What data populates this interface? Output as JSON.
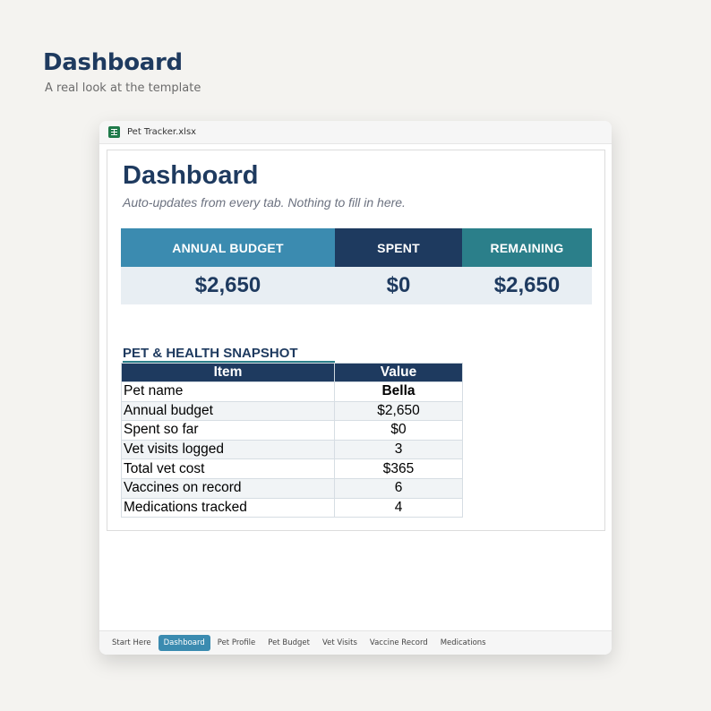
{
  "page": {
    "title": "Dashboard",
    "subtitle": "A real look at the template"
  },
  "window": {
    "filename": "Pet Tracker.xlsx",
    "icon": "spreadsheet-icon"
  },
  "sheet": {
    "title": "Dashboard",
    "subtitle": "Auto-updates from every tab. Nothing to fill in here.",
    "kpis": [
      {
        "label": "ANNUAL BUDGET",
        "value": "$2,650",
        "color": "#3b8bb0"
      },
      {
        "label": "SPENT",
        "value": "$0",
        "color": "#1e3a5f"
      },
      {
        "label": "REMAINING",
        "value": "$2,650",
        "color": "#2b7f8a"
      }
    ],
    "snapshot": {
      "title": "PET & HEALTH SNAPSHOT",
      "headers": [
        "Item",
        "Value"
      ],
      "rows": [
        {
          "item": "Pet name",
          "value": "Bella"
        },
        {
          "item": "Annual budget",
          "value": "$2,650"
        },
        {
          "item": "Spent so far",
          "value": "$0"
        },
        {
          "item": "Vet visits logged",
          "value": "3"
        },
        {
          "item": "Total vet cost",
          "value": "$365"
        },
        {
          "item": "Vaccines on record",
          "value": "6"
        },
        {
          "item": "Medications tracked",
          "value": "4"
        }
      ]
    }
  },
  "tabs": [
    {
      "label": "Start Here",
      "active": false
    },
    {
      "label": "Dashboard",
      "active": true
    },
    {
      "label": "Pet Profile",
      "active": false
    },
    {
      "label": "Pet Budget",
      "active": false
    },
    {
      "label": "Vet Visits",
      "active": false
    },
    {
      "label": "Vaccine Record",
      "active": false
    },
    {
      "label": "Medications",
      "active": false
    }
  ],
  "colors": {
    "navy": "#1e3a5f",
    "blue": "#3b8bb0",
    "teal": "#2b7f8a",
    "excel_green": "#1f7a4a"
  }
}
